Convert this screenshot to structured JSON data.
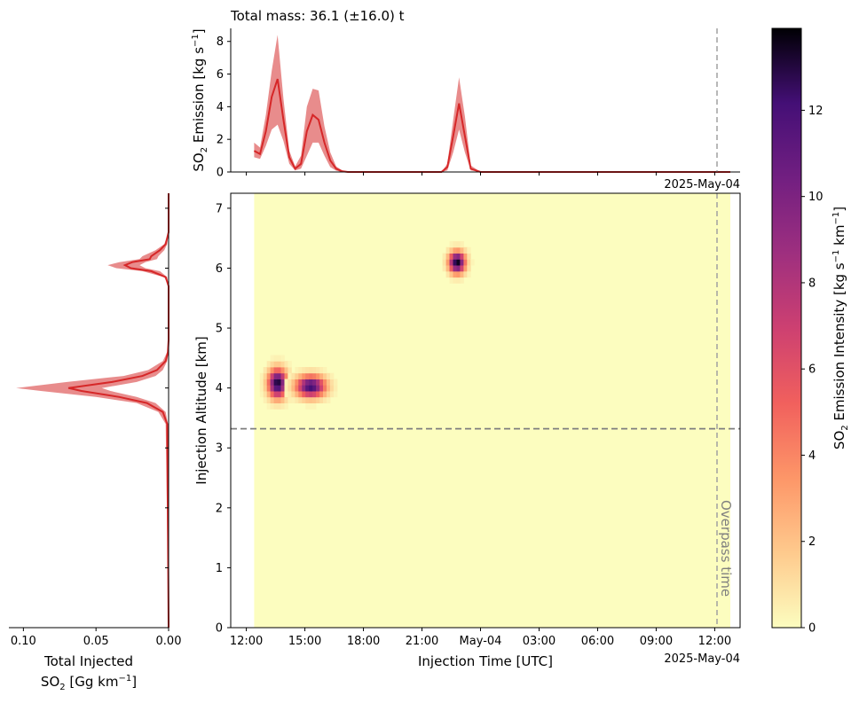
{
  "title": "Total mass: 36.1 (±16.0) t",
  "overpass_label": "Overpass time",
  "date_label_top": "2025-May-04",
  "date_label_bottom": "2025-May-04",
  "colors": {
    "emission_line": "#d62728",
    "emission_band": "#e06666",
    "heatmap_background": "#fcfdbf",
    "reference_line": "#7f7f7f"
  },
  "chart_data": [
    {
      "id": "emission_timeseries",
      "type": "area",
      "ylabel_prefix": "SO",
      "ylabel_sub": "2",
      "ylabel_rest": " Emission [kg s",
      "ylabel_sup": "−1",
      "ylabel_end": "]",
      "ylim": [
        0,
        8.8
      ],
      "yticks": [
        "0",
        "2",
        "4",
        "6",
        "8"
      ],
      "x_hours": [
        12.4,
        12.7,
        13.0,
        13.3,
        13.6,
        13.9,
        14.2,
        14.5,
        14.8,
        15.1,
        15.4,
        15.7,
        16.0,
        16.3,
        16.6,
        16.9,
        17.2,
        18.0,
        20.0,
        22.0,
        22.3,
        22.6,
        22.9,
        23.2,
        23.5,
        24.0,
        30.0,
        36.8
      ],
      "center": [
        1.3,
        1.1,
        2.5,
        4.6,
        5.7,
        3.2,
        0.9,
        0.2,
        0.5,
        2.5,
        3.5,
        3.2,
        1.8,
        0.7,
        0.2,
        0.05,
        0.0,
        0.0,
        0.0,
        0.0,
        0.3,
        2.2,
        4.2,
        2.2,
        0.2,
        0.0,
        0.0,
        0.0
      ],
      "upper": [
        1.8,
        1.5,
        3.5,
        6.2,
        8.4,
        4.5,
        1.3,
        0.35,
        1.0,
        4.0,
        5.1,
        5.0,
        2.8,
        1.2,
        0.35,
        0.1,
        0.0,
        0.0,
        0.0,
        0.0,
        0.5,
        3.2,
        5.8,
        3.4,
        0.4,
        0.0,
        0.0,
        0.0
      ],
      "lower": [
        0.9,
        0.8,
        1.6,
        2.6,
        2.9,
        1.9,
        0.5,
        0.1,
        0.2,
        1.0,
        1.8,
        1.8,
        1.0,
        0.3,
        0.08,
        0.0,
        0.0,
        0.0,
        0.0,
        0.0,
        0.1,
        1.2,
        2.6,
        1.2,
        0.1,
        0.0,
        0.0,
        0.0
      ]
    },
    {
      "id": "injection_heatmap",
      "type": "heatmap",
      "xlabel": "Injection Time [UTC]",
      "ylabel": "Injection Altitude [km]",
      "x_range_hours": [
        11.2,
        37.3
      ],
      "data_extent_hours": [
        12.4,
        36.8
      ],
      "ylim": [
        0,
        7.25
      ],
      "xticks": [
        {
          "hour": 12,
          "label": "12:00"
        },
        {
          "hour": 15,
          "label": "15:00"
        },
        {
          "hour": 18,
          "label": "18:00"
        },
        {
          "hour": 21,
          "label": "21:00"
        },
        {
          "hour": 24,
          "label": "May-04"
        },
        {
          "hour": 27,
          "label": "03:00"
        },
        {
          "hour": 30,
          "label": "06:00"
        },
        {
          "hour": 33,
          "label": "09:00"
        },
        {
          "hour": 36,
          "label": "12:00"
        }
      ],
      "yticks": [
        "0",
        "1",
        "2",
        "3",
        "4",
        "5",
        "6",
        "7"
      ],
      "overpass_hour": 36.8,
      "reference_altitude_km": 3.32,
      "sources": [
        {
          "hour": 13.6,
          "altitude_km": 4.08,
          "peak": 13.5,
          "sigma_hours": 0.32,
          "sigma_km": 0.16
        },
        {
          "hour": 15.3,
          "altitude_km": 4.03,
          "peak": 12.5,
          "sigma_hours": 0.5,
          "sigma_km": 0.12
        },
        {
          "hour": 22.8,
          "altitude_km": 6.1,
          "peak": 13.8,
          "sigma_hours": 0.28,
          "sigma_km": 0.12
        }
      ]
    },
    {
      "id": "altitude_profile",
      "type": "line",
      "xlabel_line1": "Total Injected",
      "xlabel_prefix": "SO",
      "xlabel_sub": "2",
      "xlabel_rest": " [Gg km",
      "xlabel_sup": "−1",
      "xlabel_end": "]",
      "xlim": [
        0.11,
        0.0
      ],
      "xticks": [
        "0.10",
        "0.05",
        "0.00"
      ],
      "altitude_km": [
        0.0,
        3.4,
        3.6,
        3.75,
        3.85,
        3.95,
        4.0,
        4.1,
        4.2,
        4.3,
        4.45,
        4.6,
        4.8,
        5.0,
        5.7,
        5.85,
        5.95,
        6.0,
        6.05,
        6.1,
        6.15,
        6.2,
        6.3,
        6.4,
        6.6,
        7.25
      ],
      "center": [
        0.0,
        0.001,
        0.004,
        0.015,
        0.034,
        0.06,
        0.069,
        0.039,
        0.018,
        0.008,
        0.002,
        0.0005,
        0.0,
        0.0,
        0.0,
        0.002,
        0.012,
        0.026,
        0.03,
        0.025,
        0.013,
        0.012,
        0.006,
        0.002,
        0.0,
        0.0
      ],
      "upper": [
        0.0,
        0.002,
        0.007,
        0.022,
        0.05,
        0.088,
        0.105,
        0.07,
        0.031,
        0.014,
        0.004,
        0.001,
        0.0,
        0.0,
        0.0,
        0.003,
        0.018,
        0.036,
        0.042,
        0.034,
        0.02,
        0.018,
        0.009,
        0.003,
        0.0,
        0.0
      ],
      "lower": [
        0.0,
        0.0005,
        0.002,
        0.009,
        0.022,
        0.04,
        0.046,
        0.022,
        0.009,
        0.004,
        0.001,
        0.0,
        0.0,
        0.0,
        0.0,
        0.001,
        0.006,
        0.016,
        0.02,
        0.016,
        0.008,
        0.007,
        0.003,
        0.001,
        0.0,
        0.0
      ]
    },
    {
      "id": "colorbar",
      "type": "colorbar",
      "label_prefix": "SO",
      "label_sub": "2",
      "label_rest": " Emission Intensity [kg s",
      "label_sup1": "−1",
      "label_mid": " km",
      "label_sup2": "−1",
      "label_end": "]",
      "vmin": 0,
      "vmax": 13.9,
      "ticks": [
        "0",
        "2",
        "4",
        "6",
        "8",
        "10",
        "12"
      ],
      "colormap": "magma_r"
    }
  ]
}
